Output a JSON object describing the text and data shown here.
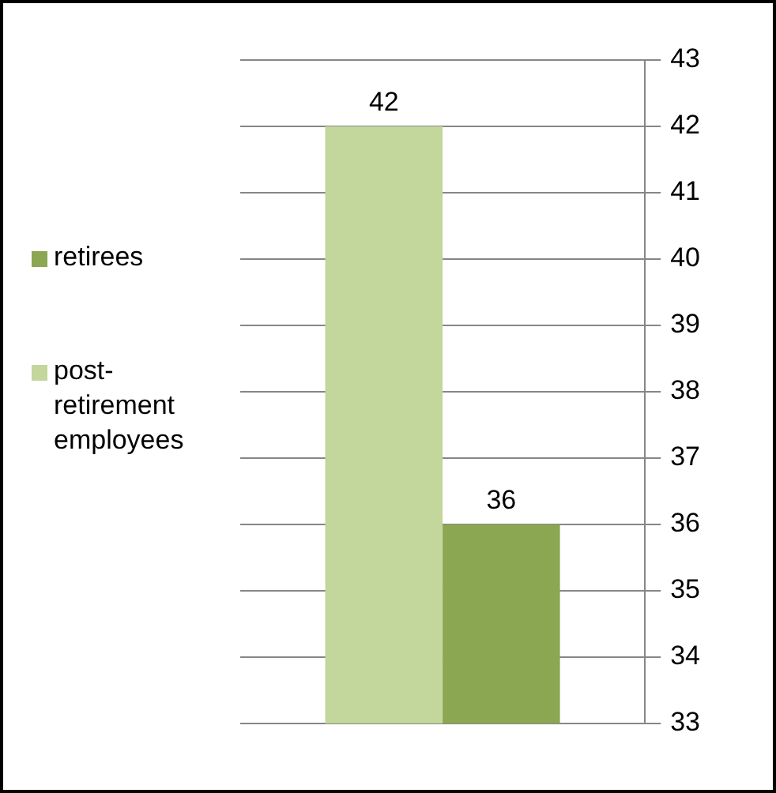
{
  "chart_data": {
    "type": "bar",
    "categories": [
      null
    ],
    "series": [
      {
        "name": "post-retirement employees",
        "color": "#c3d69b",
        "values": [
          42
        ]
      },
      {
        "name": "retirees",
        "color": "#8ba752",
        "values": [
          36
        ]
      }
    ],
    "ylim": [
      33,
      43
    ],
    "yticks": [
      33,
      34,
      35,
      36,
      37,
      38,
      39,
      40,
      41,
      42,
      43
    ],
    "grid": "y",
    "legend": "left",
    "data_labels": true
  }
}
